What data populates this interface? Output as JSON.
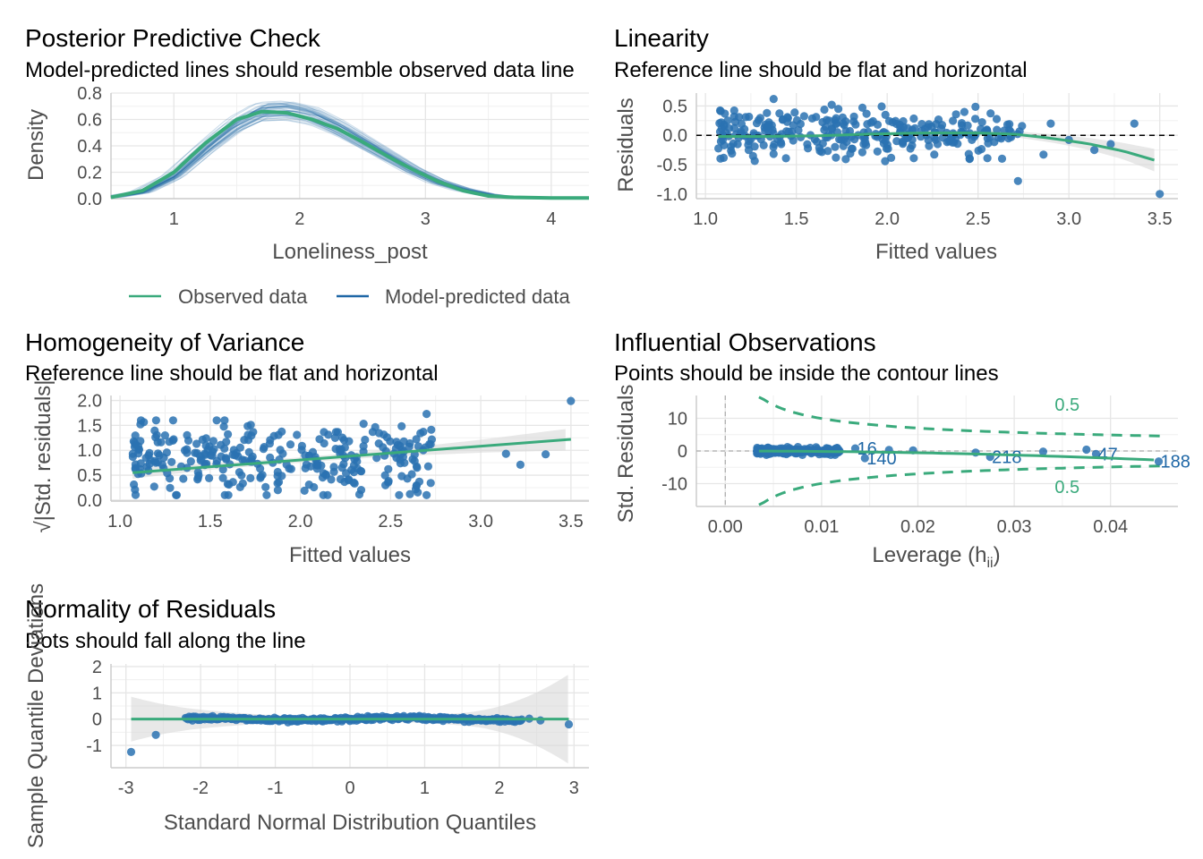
{
  "colors": {
    "observed": "#3aaa7c",
    "predicted": "#1f67a6",
    "points": "#2a72b1",
    "smooth": "#3aaa7c",
    "band": "#d9d9d9",
    "grid": "#e6e6e6",
    "contour": "#3aaa7c"
  },
  "panels": {
    "ppc": {
      "title": "Posterior Predictive Check",
      "subtitle": "Model-predicted lines should resemble observed data line",
      "xlabel": "Loneliness_post",
      "ylabel": "Density",
      "legend": {
        "observed": "Observed data",
        "predicted": "Model-predicted data",
        "placement": "bottom"
      }
    },
    "linearity": {
      "title": "Linearity",
      "subtitle": "Reference line should be flat and horizontal",
      "xlabel": "Fitted values",
      "ylabel": "Residuals"
    },
    "homogeneity": {
      "title": "Homogeneity of Variance",
      "subtitle": "Reference line should be flat and horizontal",
      "xlabel": "Fitted values",
      "ylabel": "√|Std. residuals|"
    },
    "influence": {
      "title": "Influential Observations",
      "subtitle": "Points should be inside the contour lines",
      "xlabel": "Leverage (h",
      "xlabel_sub": "ii",
      "xlabel_end": ")",
      "ylabel": "Std. Residuals",
      "contour_label": "0.5",
      "point_labels": [
        "16",
        "140",
        "218",
        "47",
        "188"
      ]
    },
    "normality": {
      "title": "Normality of Residuals",
      "subtitle": "Dots should fall along the line",
      "xlabel": "Standard Normal Distribution Quantiles",
      "ylabel": "Sample Quantile Deviations"
    }
  },
  "chart_data": [
    {
      "id": "ppc",
      "type": "line",
      "xlim": [
        0.5,
        4.3
      ],
      "ylim": [
        0.0,
        0.8
      ],
      "xticks": [
        1,
        2,
        3,
        4
      ],
      "xtick_labels": [
        "1",
        "2",
        "3",
        "4"
      ],
      "yticks": [
        0.0,
        0.2,
        0.4,
        0.6,
        0.8
      ],
      "ytick_labels": [
        "0.0",
        "0.2",
        "0.4",
        "0.6",
        "0.8"
      ],
      "series": [
        {
          "name": "Observed data",
          "x": [
            0.5,
            0.75,
            1.0,
            1.25,
            1.5,
            1.7,
            1.9,
            2.1,
            2.3,
            2.5,
            2.7,
            2.9,
            3.1,
            3.3,
            3.5,
            3.7,
            4.0,
            4.3
          ],
          "y": [
            0.01,
            0.06,
            0.2,
            0.42,
            0.6,
            0.66,
            0.65,
            0.6,
            0.53,
            0.43,
            0.32,
            0.22,
            0.13,
            0.06,
            0.02,
            0.01,
            0.005,
            0.005
          ]
        },
        {
          "name": "Model-predicted data",
          "x": [
            0.5,
            0.75,
            1.0,
            1.25,
            1.5,
            1.7,
            1.9,
            2.1,
            2.3,
            2.5,
            2.7,
            2.9,
            3.1,
            3.3,
            3.5,
            3.7,
            4.0,
            4.3
          ],
          "y": [
            0.01,
            0.05,
            0.17,
            0.38,
            0.57,
            0.67,
            0.68,
            0.64,
            0.55,
            0.44,
            0.33,
            0.22,
            0.13,
            0.07,
            0.03,
            0.01,
            0.005,
            0.005
          ]
        }
      ],
      "grid": true
    },
    {
      "id": "linearity",
      "type": "scatter",
      "xlim": [
        0.95,
        3.6
      ],
      "ylim": [
        -1.08,
        0.72
      ],
      "xticks": [
        1.0,
        1.5,
        2.0,
        2.5,
        3.0,
        3.5
      ],
      "xtick_labels": [
        "1.0",
        "1.5",
        "2.0",
        "2.5",
        "3.0",
        "3.5"
      ],
      "yticks": [
        -1.0,
        -0.5,
        0.0,
        0.5
      ],
      "ytick_labels": [
        "-1.0",
        "-0.5",
        "0.0",
        "0.5"
      ],
      "reference_line": 0.0,
      "smooth": {
        "x": [
          1.07,
          1.3,
          1.6,
          1.9,
          2.2,
          2.5,
          2.7,
          2.9,
          3.1,
          3.3,
          3.5
        ],
        "y": [
          -0.02,
          -0.02,
          -0.01,
          0.02,
          0.04,
          0.04,
          0.02,
          -0.05,
          -0.14,
          -0.27,
          -0.45
        ]
      },
      "band_halfwidth": {
        "x": [
          1.07,
          1.3,
          1.6,
          1.9,
          2.2,
          2.5,
          2.7,
          2.9,
          3.1,
          3.3,
          3.5
        ],
        "y": [
          0.06,
          0.04,
          0.03,
          0.025,
          0.03,
          0.04,
          0.05,
          0.07,
          0.1,
          0.14,
          0.2
        ]
      },
      "outliers": [
        {
          "x": 3.5,
          "y": -1.0
        },
        {
          "x": 3.36,
          "y": 0.2
        },
        {
          "x": 2.72,
          "y": -0.78
        },
        {
          "x": 3.23,
          "y": -0.15
        },
        {
          "x": 3.0,
          "y": -0.08
        },
        {
          "x": 3.14,
          "y": -0.25
        },
        {
          "x": 2.86,
          "y": -0.33
        },
        {
          "x": 2.9,
          "y": 0.2
        }
      ],
      "points_n": 300,
      "points_x_range": [
        1.07,
        2.75
      ],
      "points_y_range": [
        -0.7,
        0.62
      ],
      "grid": true
    },
    {
      "id": "homogeneity",
      "type": "scatter",
      "xlim": [
        0.95,
        3.6
      ],
      "ylim": [
        -0.02,
        2.1
      ],
      "xticks": [
        1.0,
        1.5,
        2.0,
        2.5,
        3.0,
        3.5
      ],
      "xtick_labels": [
        "1.0",
        "1.5",
        "2.0",
        "2.5",
        "3.0",
        "3.5"
      ],
      "yticks": [
        0.0,
        0.5,
        1.0,
        1.5,
        2.0
      ],
      "ytick_labels": [
        "0.0",
        "0.5",
        "1.0",
        "1.5",
        "2.0"
      ],
      "smooth": {
        "x": [
          1.07,
          3.5
        ],
        "y": [
          0.55,
          1.22
        ]
      },
      "band_halfwidth": {
        "x": [
          1.07,
          1.5,
          2.0,
          2.5,
          3.0,
          3.5
        ],
        "y": [
          0.12,
          0.06,
          0.05,
          0.07,
          0.13,
          0.22
        ]
      },
      "outliers": [
        {
          "x": 3.5,
          "y": 1.99
        },
        {
          "x": 2.7,
          "y": 0.1
        },
        {
          "x": 2.7,
          "y": 1.73
        },
        {
          "x": 3.36,
          "y": 0.92
        },
        {
          "x": 3.22,
          "y": 0.71
        },
        {
          "x": 3.14,
          "y": 0.93
        }
      ],
      "points_n": 300,
      "points_x_range": [
        1.07,
        2.75
      ],
      "points_y_range": [
        0.1,
        1.6
      ],
      "grid": true
    },
    {
      "id": "influence",
      "type": "scatter",
      "xlim": [
        -0.003,
        0.047
      ],
      "ylim": [
        -17,
        17
      ],
      "xticks": [
        0.0,
        0.01,
        0.02,
        0.03,
        0.04
      ],
      "xtick_labels": [
        "0.00",
        "0.01",
        "0.02",
        "0.03",
        "0.04"
      ],
      "yticks": [
        -10,
        0,
        10
      ],
      "ytick_labels": [
        "-10",
        "0",
        "10"
      ],
      "cook_contour": 0.5,
      "labelled_points": [
        {
          "label": "16",
          "x": 0.0135,
          "y": 0.8
        },
        {
          "label": "140",
          "x": 0.0145,
          "y": -2.2
        },
        {
          "label": "218",
          "x": 0.0275,
          "y": -1.8
        },
        {
          "label": "47",
          "x": 0.0385,
          "y": -0.9
        },
        {
          "label": "188",
          "x": 0.045,
          "y": -3.2
        }
      ],
      "points_n": 300,
      "points_x_range": [
        0.0033,
        0.012
      ],
      "points_y_range": [
        -1.2,
        1.2
      ],
      "grid": true
    },
    {
      "id": "normality",
      "type": "scatter",
      "xlim": [
        -3.2,
        3.2
      ],
      "ylim": [
        -1.85,
        2.1
      ],
      "xticks": [
        -3,
        -2,
        -1,
        0,
        1,
        2,
        3
      ],
      "xtick_labels": [
        "-3",
        "-2",
        "-1",
        "0",
        "1",
        "2",
        "3"
      ],
      "yticks": [
        -1,
        0,
        1,
        2
      ],
      "ytick_labels": [
        "-1",
        "0",
        "1",
        "2"
      ],
      "reference_line": 0.0,
      "outliers": [
        {
          "x": -2.93,
          "y": -1.25
        },
        {
          "x": -2.6,
          "y": -0.6
        },
        {
          "x": 2.93,
          "y": -0.2
        },
        {
          "x": 2.55,
          "y": -0.05
        },
        {
          "x": 2.4,
          "y": 0.02
        }
      ],
      "points_n": 300,
      "grid": true
    }
  ]
}
